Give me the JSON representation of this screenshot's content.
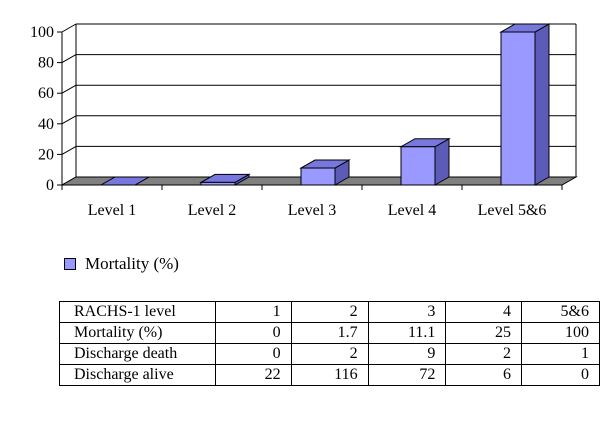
{
  "chart_data": {
    "type": "bar",
    "categories": [
      "Level 1",
      "Level 2",
      "Level 3",
      "Level 4",
      "Level 5&6"
    ],
    "series": [
      {
        "name": "Mortality (%)",
        "values": [
          0,
          1.7,
          11.1,
          25,
          100
        ]
      }
    ],
    "ylim": [
      0,
      100
    ],
    "yticks": [
      0,
      20,
      40,
      60,
      80,
      100
    ],
    "grid": true,
    "legend": "bottom-left",
    "three_d": true,
    "colors": {
      "front": "#9999ff",
      "side": "#5c5cb8",
      "top": "#7777dd",
      "grid": "#000000"
    }
  },
  "table": {
    "rows": [
      {
        "label": "RACHS-1 level",
        "values": [
          "1",
          "2",
          "3",
          "4",
          "5&6"
        ]
      },
      {
        "label": "Mortality (%)",
        "values": [
          "0",
          "1.7",
          "11.1",
          "25",
          "100"
        ]
      },
      {
        "label": "Discharge death",
        "values": [
          "0",
          "2",
          "9",
          "2",
          "1"
        ]
      },
      {
        "label": "Discharge alive",
        "values": [
          "22",
          "116",
          "72",
          "6",
          "0"
        ]
      }
    ]
  }
}
